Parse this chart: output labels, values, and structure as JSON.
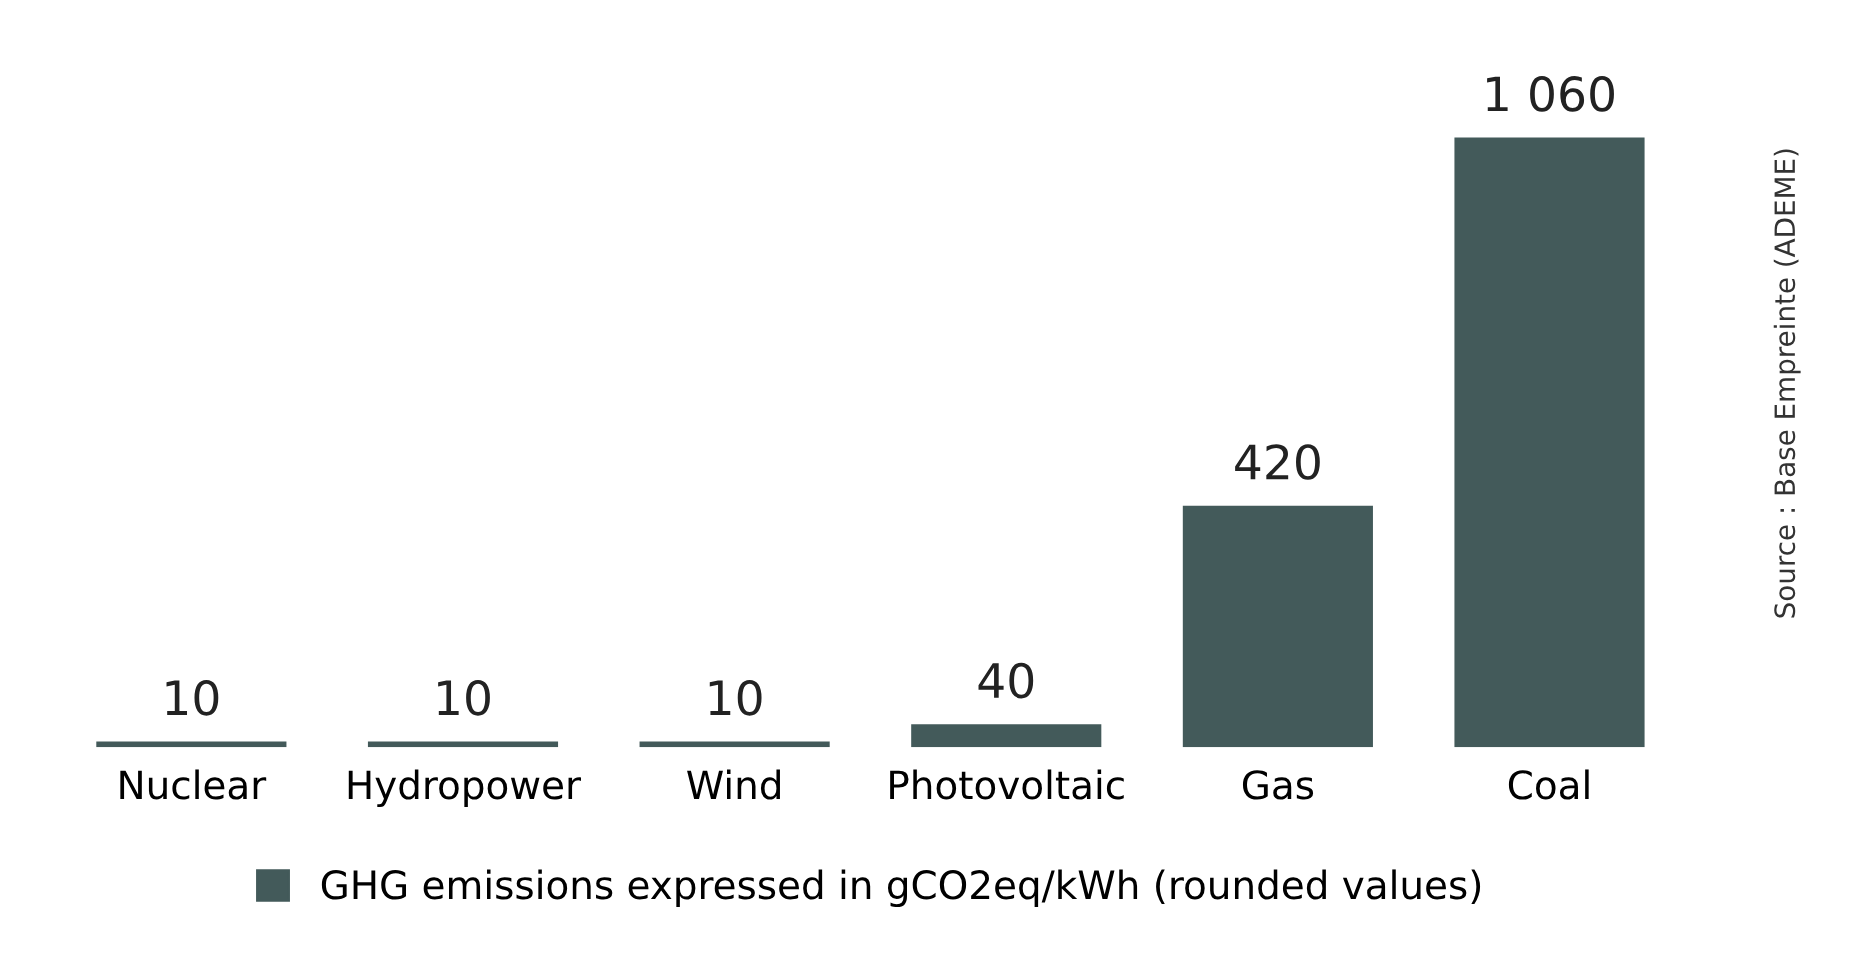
{
  "chart_data": {
    "type": "bar",
    "categories": [
      "Nuclear",
      "Hydropower",
      "Wind",
      "Photovoltaic",
      "Gas",
      "Coal"
    ],
    "series": [
      {
        "name": "GHG emissions expressed in gCO2eq/kWh (rounded values)",
        "color": "#435a5a",
        "values": [
          10,
          10,
          10,
          40,
          420,
          1060
        ],
        "value_labels": [
          "10",
          "10",
          "10",
          "40",
          "420",
          "1 060"
        ]
      }
    ],
    "legend": "bottom",
    "grid": false,
    "annotations": [
      "Source : Base Empreinte (ADEME)"
    ]
  }
}
